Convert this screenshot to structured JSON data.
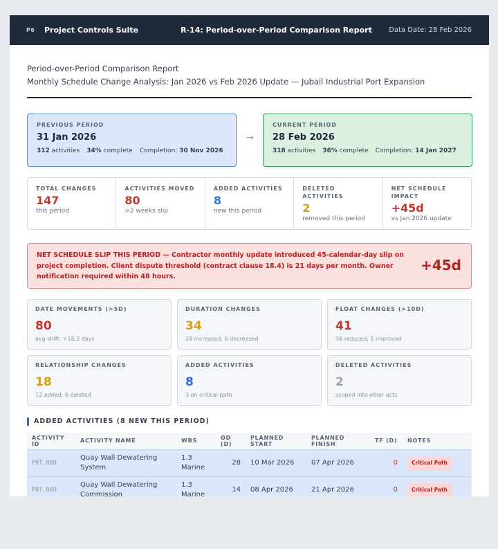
{
  "topbar": {
    "logo": "P6",
    "app_name": "Project Controls Suite",
    "report_title": "R-14: Period-over-Period Comparison Report",
    "data_date": "Data Date: 28 Feb 2026"
  },
  "header": {
    "title": "Period-over-Period Comparison Report",
    "subtitle": "Monthly Schedule Change Analysis: Jan 2026 vs Feb 2026 Update — Jubail Industrial Port Expansion"
  },
  "periods": {
    "previous": {
      "label": "PREVIOUS PERIOD",
      "date": "31 Jan 2026",
      "activities_value": "312",
      "activities_text": "activities",
      "complete_value": "34%",
      "complete_text": "complete",
      "completion_label": "Completion:",
      "completion_value": "30 Nov 2026"
    },
    "arrow": "→",
    "current": {
      "label": "CURRENT PERIOD",
      "date": "28 Feb 2026",
      "activities_value": "318",
      "activities_text": "activities",
      "complete_value": "36%",
      "complete_text": "complete",
      "completion_label": "Completion:",
      "completion_value": "14 Jan 2027"
    }
  },
  "summary": [
    {
      "label": "TOTAL CHANGES",
      "value": "147",
      "sub": "this period",
      "color": "#c0392b"
    },
    {
      "label": "ACTIVITIES MOVED",
      "value": "80",
      "sub": ">2 weeks slip",
      "color": "#c0392b"
    },
    {
      "label": "ADDED ACTIVITIES",
      "value": "8",
      "sub": "new this period",
      "color": "#2f6fd6"
    },
    {
      "label": "DELETED ACTIVITIES",
      "value": "2",
      "sub": "removed this period",
      "color": "#d4a017"
    },
    {
      "label": "NET SCHEDULE IMPACT",
      "value": "+45d",
      "sub": "vs Jan 2026 update",
      "color": "#c0392b"
    }
  ],
  "alert": {
    "text": "NET SCHEDULE SLIP THIS PERIOD — Contractor monthly update introduced 45-calendar-day slip on project completion. Client dispute threshold (contract clause 18.4) is 21 days per month. Owner notification required within 48 hours.",
    "value": "+45d"
  },
  "metrics": [
    {
      "label": "DATE MOVEMENTS (>5D)",
      "value": "80",
      "sub": "avg shift: +18.2 days",
      "color": "#c0392b"
    },
    {
      "label": "DURATION CHANGES",
      "value": "34",
      "sub": "28 increased, 6 decreased",
      "color": "#d4a017"
    },
    {
      "label": "FLOAT CHANGES (>10D)",
      "value": "41",
      "sub": "36 reduced, 5 improved",
      "color": "#c0392b"
    },
    {
      "label": "RELATIONSHIP CHANGES",
      "value": "18",
      "sub": "12 added, 6 deleted",
      "color": "#d4a017"
    },
    {
      "label": "ADDED ACTIVITIES",
      "value": "8",
      "sub": "3 on critical path",
      "color": "#2f6fd6"
    },
    {
      "label": "DELETED ACTIVITIES",
      "value": "2",
      "sub": "scoped into other acts",
      "color": "#9aa3ae"
    }
  ],
  "added_section": {
    "title": "ADDED ACTIVITIES (8 NEW THIS PERIOD)",
    "columns": [
      "ACTIVITY ID",
      "ACTIVITY NAME",
      "WBS",
      "OD (D)",
      "PLANNED START",
      "PLANNED FINISH",
      "TF (D)",
      "NOTES"
    ],
    "rows": [
      {
        "id": "PRT.088",
        "name": "Quay Wall Dewatering System",
        "wbs": "1.3 Marine",
        "od": "28",
        "start": "10 Mar 2026",
        "finish": "07 Apr 2026",
        "tf": "0",
        "note": "Critical Path"
      },
      {
        "id": "PRT.089",
        "name": "Quay Wall Dewatering Commission",
        "wbs": "1.3 Marine",
        "od": "14",
        "start": "08 Apr 2026",
        "finish": "21 Apr 2026",
        "tf": "0",
        "note": "Critical Path"
      }
    ]
  }
}
